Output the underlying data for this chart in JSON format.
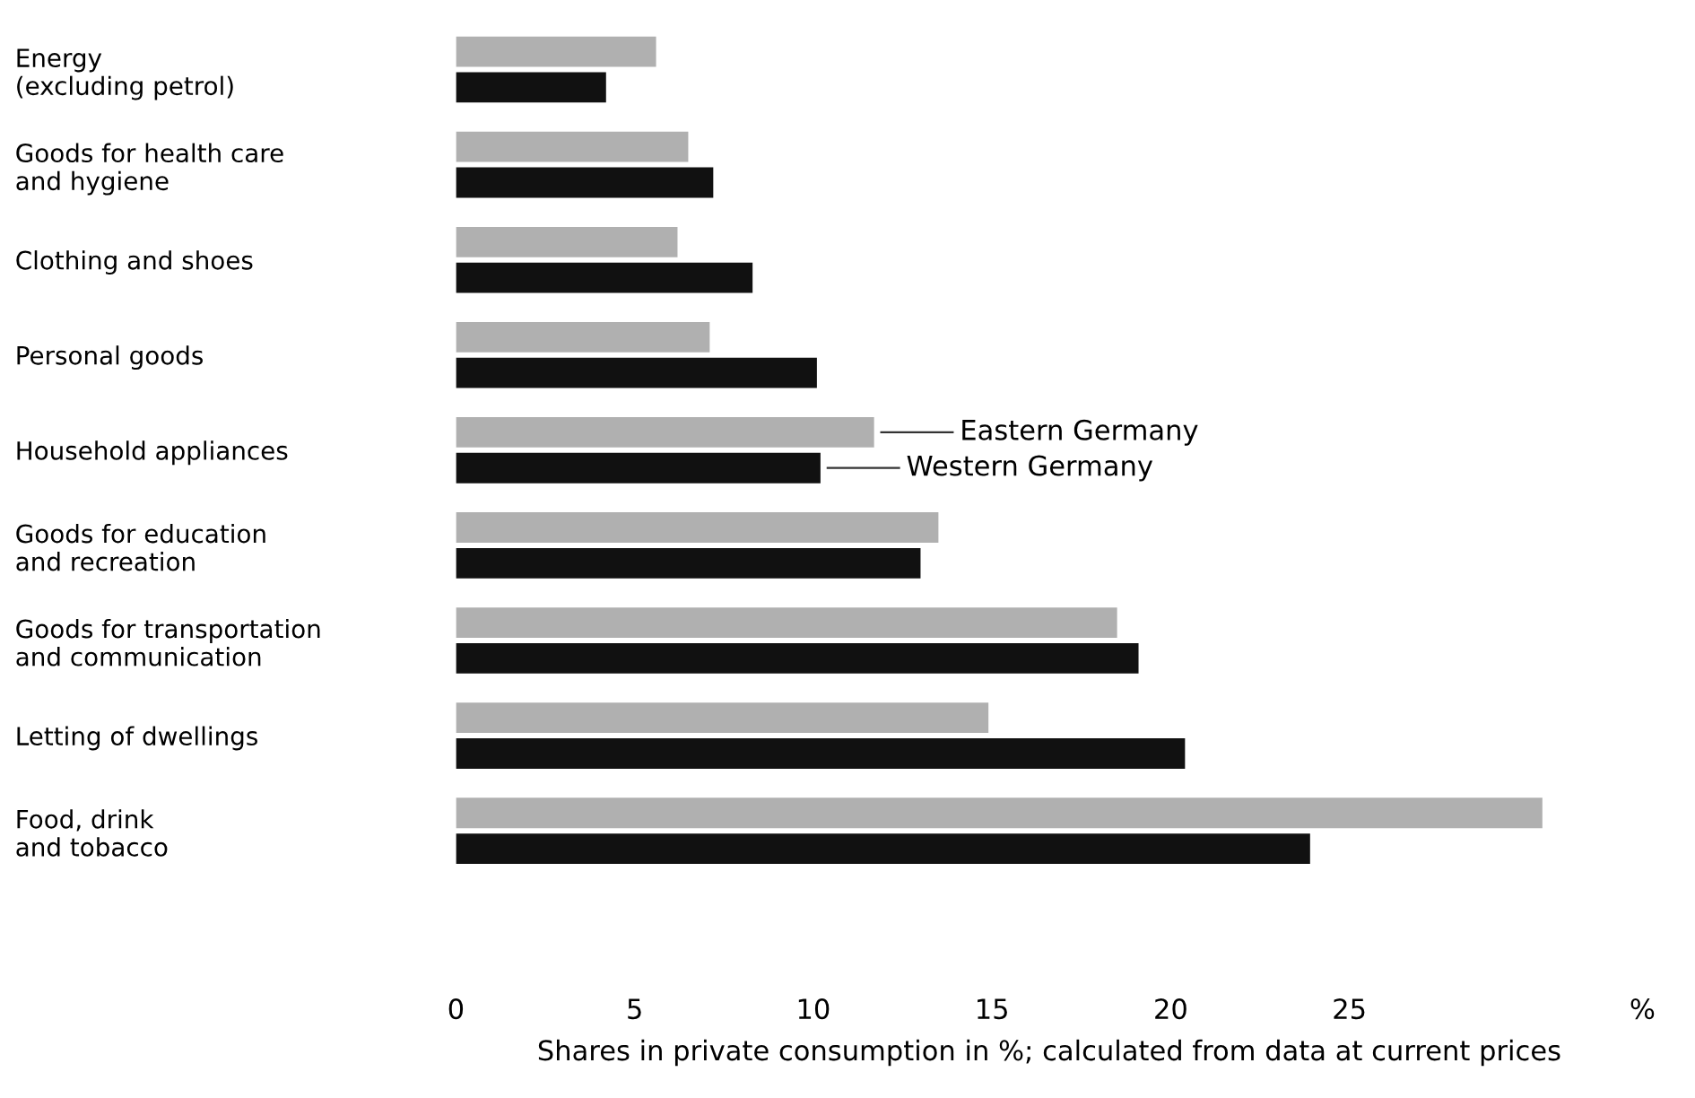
{
  "chart_data": {
    "type": "bar",
    "orientation": "horizontal",
    "xlabel": "Shares in private consumption in %; calculated from data at current prices",
    "categories": [
      "Energy\n(excluding petrol)",
      "Goods for health care\nand hygiene",
      "Clothing and shoes",
      "Personal goods",
      "Household appliances",
      "Goods for education\nand recreation",
      "Goods for transportation\nand communication",
      "Letting of dwellings",
      "Food, drink\nand tobacco"
    ],
    "series": [
      {
        "name": "Eastern Germany",
        "color": "#b0b0b0",
        "values": [
          5.6,
          6.5,
          6.2,
          7.1,
          11.7,
          13.5,
          18.5,
          14.9,
          30.4
        ]
      },
      {
        "name": "Western Germany",
        "color": "#111111",
        "values": [
          4.2,
          7.2,
          8.3,
          10.1,
          10.2,
          13.0,
          19.1,
          20.4,
          23.9
        ]
      }
    ],
    "xlim": [
      0,
      33.2
    ],
    "xticks": [
      0,
      5,
      10,
      15,
      20,
      25,
      {
        "value": 33.2,
        "label": "%"
      }
    ],
    "grid": false,
    "legend": false
  }
}
